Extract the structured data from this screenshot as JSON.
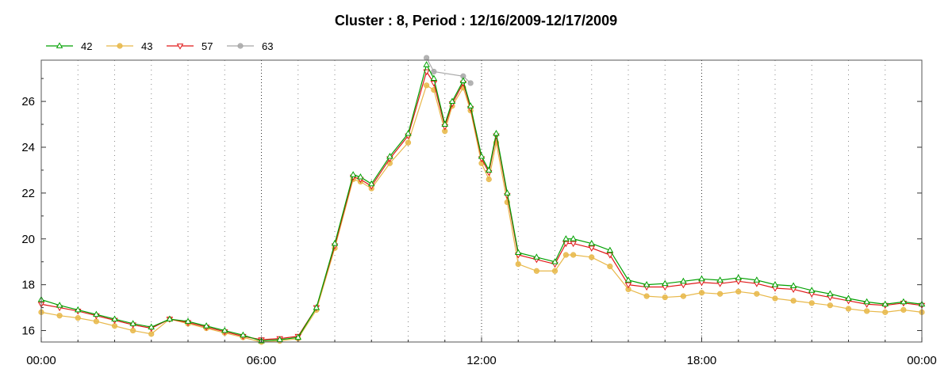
{
  "chart_data": {
    "type": "line",
    "title": "Cluster : 8, Period : 12/16/2009-12/17/2009",
    "xlabel": "",
    "ylabel": "",
    "x_unit": "hours",
    "xlim": [
      0,
      24
    ],
    "ylim": [
      15.5,
      27.8
    ],
    "x_ticks": [
      {
        "value": 0,
        "label": "00:00"
      },
      {
        "value": 6,
        "label": "06:00"
      },
      {
        "value": 12,
        "label": "12:00"
      },
      {
        "value": 18,
        "label": "18:00"
      },
      {
        "value": 24,
        "label": "00:00"
      }
    ],
    "y_ticks": [
      16,
      18,
      20,
      22,
      24,
      26
    ],
    "grid": "dotted vertical lines every hour",
    "legend": "top-left",
    "series": [
      {
        "name": "42",
        "color": "#00a000",
        "marker": "triangle-up",
        "x": [
          0,
          0.5,
          1,
          1.5,
          2,
          2.5,
          3,
          3.5,
          4,
          4.5,
          5,
          5.5,
          6,
          6.5,
          7,
          7.5,
          8,
          8.5,
          8.7,
          9,
          9.5,
          10,
          10.5,
          10.7,
          11,
          11.2,
          11.5,
          11.7,
          12,
          12.2,
          12.4,
          12.7,
          13,
          13.5,
          14,
          14.3,
          14.5,
          15,
          15.5,
          16,
          16.5,
          17,
          17.5,
          18,
          18.5,
          19,
          19.5,
          20,
          20.5,
          21,
          21.5,
          22,
          22.5,
          23,
          23.5,
          24
        ],
        "values": [
          17.35,
          17.1,
          16.9,
          16.7,
          16.5,
          16.3,
          16.15,
          16.5,
          16.4,
          16.2,
          16.0,
          15.8,
          15.55,
          15.6,
          15.7,
          17.0,
          19.8,
          22.8,
          22.7,
          22.4,
          23.6,
          24.6,
          27.6,
          27.0,
          25.0,
          26.0,
          26.9,
          25.8,
          23.6,
          23.0,
          24.6,
          22.0,
          19.4,
          19.2,
          19.0,
          20.0,
          20.0,
          19.8,
          19.5,
          18.2,
          18.0,
          18.05,
          18.15,
          18.25,
          18.2,
          18.3,
          18.2,
          18.0,
          17.95,
          17.75,
          17.6,
          17.4,
          17.25,
          17.15,
          17.25,
          17.15
        ]
      },
      {
        "name": "43",
        "color": "#e8b84a",
        "marker": "circle",
        "x": [
          0,
          0.5,
          1,
          1.5,
          2,
          2.5,
          3,
          3.5,
          4,
          4.5,
          5,
          5.5,
          6,
          6.5,
          7,
          7.5,
          8,
          8.5,
          8.7,
          9,
          9.5,
          10,
          10.5,
          10.7,
          11,
          11.2,
          11.5,
          11.7,
          12,
          12.2,
          12.4,
          12.7,
          13,
          13.5,
          14,
          14.3,
          14.5,
          15,
          15.5,
          16,
          16.5,
          17,
          17.5,
          18,
          18.5,
          19,
          19.5,
          20,
          20.5,
          21,
          21.5,
          22,
          22.5,
          23,
          23.5,
          24
        ],
        "values": [
          16.8,
          16.65,
          16.55,
          16.4,
          16.2,
          16.0,
          15.85,
          16.5,
          16.3,
          16.1,
          15.9,
          15.7,
          15.5,
          15.55,
          15.65,
          16.9,
          19.6,
          22.6,
          22.5,
          22.2,
          23.3,
          24.2,
          26.7,
          26.5,
          24.7,
          25.8,
          26.6,
          25.6,
          23.3,
          22.6,
          24.2,
          21.6,
          18.9,
          18.6,
          18.6,
          19.3,
          19.3,
          19.2,
          18.8,
          17.8,
          17.5,
          17.45,
          17.5,
          17.65,
          17.6,
          17.7,
          17.6,
          17.4,
          17.3,
          17.2,
          17.1,
          16.95,
          16.85,
          16.8,
          16.9,
          16.8
        ]
      },
      {
        "name": "57",
        "color": "#e01818",
        "marker": "triangle-down",
        "x": [
          0,
          0.5,
          1,
          1.5,
          2,
          2.5,
          3,
          3.5,
          4,
          4.5,
          5,
          5.5,
          6,
          6.5,
          7,
          7.5,
          8,
          8.5,
          8.7,
          9,
          9.5,
          10,
          10.5,
          10.7,
          11,
          11.2,
          11.5,
          11.7,
          12,
          12.2,
          12.4,
          12.7,
          13,
          13.5,
          14,
          14.3,
          14.5,
          15,
          15.5,
          16,
          16.5,
          17,
          17.5,
          18,
          18.5,
          19,
          19.5,
          20,
          20.5,
          21,
          21.5,
          22,
          22.5,
          23,
          23.5,
          24
        ],
        "values": [
          17.15,
          17.0,
          16.85,
          16.65,
          16.45,
          16.25,
          16.1,
          16.5,
          16.35,
          16.15,
          15.95,
          15.75,
          15.6,
          15.65,
          15.75,
          17.0,
          19.7,
          22.7,
          22.6,
          22.3,
          23.5,
          24.5,
          27.3,
          26.8,
          24.9,
          25.9,
          26.8,
          25.7,
          23.5,
          22.9,
          24.5,
          21.9,
          19.3,
          19.1,
          18.9,
          19.8,
          19.8,
          19.6,
          19.3,
          18.0,
          17.9,
          17.9,
          18.0,
          18.1,
          18.05,
          18.15,
          18.05,
          17.85,
          17.8,
          17.6,
          17.45,
          17.3,
          17.15,
          17.1,
          17.2,
          17.1
        ]
      },
      {
        "name": "63",
        "color": "#a8a8a8",
        "marker": "circle",
        "x": [
          10.5,
          10.7,
          11.5,
          11.7
        ],
        "values": [
          27.9,
          27.3,
          27.1,
          26.8
        ]
      }
    ]
  }
}
